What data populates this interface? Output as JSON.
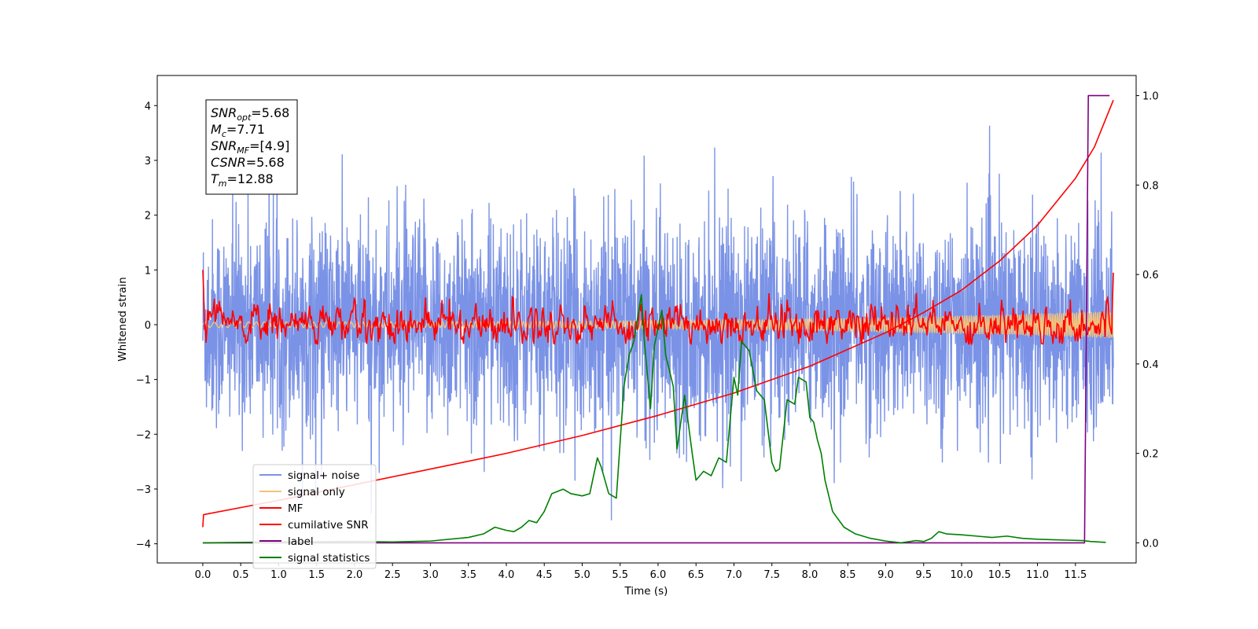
{
  "chart_data": {
    "type": "line",
    "title": "",
    "xlabel": "Time (s)",
    "ylabel": "Whitened strain",
    "xlim": [
      -0.6,
      12.3
    ],
    "ylim": [
      -4.35,
      4.55
    ],
    "y2lim": [
      -0.045,
      1.045
    ],
    "x_ticks": [
      "0.0",
      "0.5",
      "1.0",
      "1.5",
      "2.0",
      "2.5",
      "3.0",
      "3.5",
      "4.0",
      "4.5",
      "5.0",
      "5.5",
      "6.0",
      "6.5",
      "7.0",
      "7.5",
      "8.0",
      "8.5",
      "9.0",
      "9.5",
      "10.0",
      "10.5",
      "11.0",
      "11.5"
    ],
    "y_ticks": [
      "4",
      "3",
      "2",
      "1",
      "0",
      "−1",
      "−2",
      "−3",
      "−4"
    ],
    "y2_ticks": [
      "1.0",
      "0.8",
      "0.6",
      "0.4",
      "0.2",
      "0.0"
    ],
    "grid": false,
    "legend_position": "lower-left",
    "info_box": [
      {
        "base": "SNR",
        "sub": "opt",
        "value": "=5.68"
      },
      {
        "base": "M",
        "sub": "c",
        "value": "=7.71"
      },
      {
        "base": "SNR",
        "sub": "MF",
        "value": "=[4.9]"
      },
      {
        "base": "CSNR",
        "sub": "",
        "value": "=5.68"
      },
      {
        "base": "T",
        "sub": "m",
        "value": "=12.88"
      }
    ],
    "series": [
      {
        "name": "signal+ noise",
        "color": "#7b93e6",
        "axis": "left",
        "description_shape": "dense noise band",
        "x_range": [
          0.0,
          12.0
        ],
        "typical_range": [
          -2.4,
          2.2
        ],
        "extremes": [
          -3.7,
          4.17
        ]
      },
      {
        "name": "signal only",
        "color": "#f5c27a",
        "axis": "left",
        "x_range": [
          0.0,
          12.0
        ],
        "envelope_start": 0.05,
        "envelope_end": 0.25
      },
      {
        "name": "MF",
        "color": "#ff0000",
        "axis": "left",
        "x_range": [
          0.0,
          12.0
        ],
        "typical_range": [
          -0.35,
          0.55
        ],
        "start_value": 1.0,
        "end_value": 0.95
      },
      {
        "name": "cumilative SNR",
        "color": "#ff0000",
        "axis": "right",
        "x": [
          0.0,
          0.01,
          1.0,
          2.0,
          3.0,
          4.0,
          5.0,
          6.0,
          7.0,
          8.0,
          9.0,
          9.5,
          10.0,
          10.5,
          11.0,
          11.5,
          11.75,
          12.0
        ],
        "values": [
          0.035,
          0.063,
          0.095,
          0.13,
          0.165,
          0.2,
          0.24,
          0.285,
          0.335,
          0.395,
          0.47,
          0.515,
          0.565,
          0.63,
          0.71,
          0.815,
          0.885,
          0.99
        ]
      },
      {
        "name": "label",
        "color": "#800080",
        "axis": "right",
        "x": [
          0.0,
          11.62,
          11.67,
          11.95
        ],
        "values": [
          0.0,
          0.0,
          1.0,
          1.0
        ]
      },
      {
        "name": "signal statistics",
        "color": "#008000",
        "axis": "right",
        "x": [
          0.0,
          1.0,
          2.0,
          2.5,
          3.0,
          3.5,
          3.7,
          3.85,
          4.0,
          4.1,
          4.2,
          4.3,
          4.4,
          4.5,
          4.6,
          4.75,
          4.85,
          5.0,
          5.1,
          5.2,
          5.25,
          5.35,
          5.45,
          5.55,
          5.62,
          5.68,
          5.78,
          5.82,
          5.9,
          5.95,
          6.05,
          6.1,
          6.2,
          6.25,
          6.35,
          6.45,
          6.5,
          6.6,
          6.7,
          6.8,
          6.9,
          7.0,
          7.05,
          7.1,
          7.2,
          7.3,
          7.4,
          7.5,
          7.55,
          7.6,
          7.7,
          7.8,
          7.85,
          7.95,
          8.0,
          8.05,
          8.1,
          8.15,
          8.2,
          8.3,
          8.45,
          8.6,
          8.8,
          9.0,
          9.2,
          9.4,
          9.5,
          9.6,
          9.7,
          9.8,
          10.0,
          10.2,
          10.4,
          10.6,
          10.8,
          11.0,
          11.2,
          11.4,
          11.6,
          11.7,
          11.9
        ],
        "values": [
          0.0,
          0.002,
          0.003,
          0.002,
          0.004,
          0.012,
          0.02,
          0.035,
          0.028,
          0.025,
          0.035,
          0.05,
          0.045,
          0.07,
          0.11,
          0.12,
          0.11,
          0.105,
          0.11,
          0.19,
          0.17,
          0.11,
          0.1,
          0.35,
          0.42,
          0.45,
          0.555,
          0.45,
          0.3,
          0.44,
          0.52,
          0.42,
          0.35,
          0.21,
          0.33,
          0.2,
          0.14,
          0.16,
          0.15,
          0.19,
          0.18,
          0.37,
          0.33,
          0.45,
          0.43,
          0.34,
          0.32,
          0.18,
          0.16,
          0.165,
          0.32,
          0.31,
          0.37,
          0.36,
          0.28,
          0.27,
          0.23,
          0.2,
          0.14,
          0.07,
          0.035,
          0.02,
          0.01,
          0.004,
          0.0,
          0.005,
          0.003,
          0.01,
          0.025,
          0.02,
          0.018,
          0.015,
          0.012,
          0.015,
          0.01,
          0.008,
          0.007,
          0.006,
          0.005,
          0.003,
          0.001
        ]
      }
    ]
  }
}
